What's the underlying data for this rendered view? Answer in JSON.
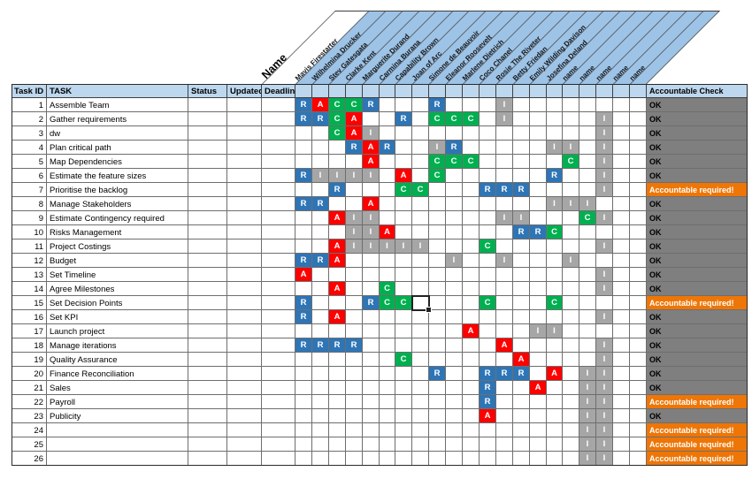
{
  "table": {
    "name_header": "Name",
    "columns": [
      "Task ID",
      "TASK",
      "Status",
      "Updated",
      "Deadline"
    ],
    "accountable_header": "Accountable Check",
    "people": [
      "Mavis Firestarter",
      "Wilhelmina Drucker",
      "Stev Gatesgata",
      "Clarke Kent",
      "Marguerite Durand",
      "Carmina Burana",
      "Capability Brown",
      "Joan of Arc",
      "Simone de Beauvoir",
      "Eleanor Roosevelt",
      "Marlene Dietrich",
      "Coco Chanel",
      "Rosie The Riveter",
      "Betty Friedan",
      "Emily Wilding Davison",
      "Josefina Deland",
      "name",
      "name",
      "name",
      "name",
      "name"
    ],
    "colors": {
      "R": "#2E75B6",
      "A": "#FE0000",
      "C": "#00B050",
      "I": "#A6A6A6",
      "band": "#9DC3E6",
      "header_bg": "#BDD7EE",
      "ok_bg": "#7F7F7F",
      "ok_text": "#000000",
      "required_bg": "#EE7607",
      "required_text": "#FFFFFF"
    },
    "status_ok": "OK",
    "status_required": "Accountable required!",
    "tasks": [
      {
        "id": 1,
        "task": "Assemble Team",
        "raci": {
          "1": "R",
          "2": "A",
          "3": "C",
          "4": "C",
          "5": "R",
          "9": "R",
          "13": "I"
        },
        "check": "OK"
      },
      {
        "id": 2,
        "task": "Gather requirements",
        "raci": {
          "1": "R",
          "2": "R",
          "3": "C",
          "4": "A",
          "7": "R",
          "9": "C",
          "10": "C",
          "11": "C",
          "13": "I",
          "19": "I"
        },
        "check": "OK"
      },
      {
        "id": 3,
        "task": "dw",
        "raci": {
          "3": "C",
          "4": "A",
          "5": "I",
          "19": "I"
        },
        "check": "OK"
      },
      {
        "id": 4,
        "task": "Plan critical path",
        "raci": {
          "4": "R",
          "5": "A",
          "6": "R",
          "9": "I",
          "10": "R",
          "16": "I",
          "17": "I",
          "19": "I"
        },
        "check": "OK"
      },
      {
        "id": 5,
        "task": "Map Dependencies",
        "raci": {
          "5": "A",
          "9": "C",
          "10": "C",
          "11": "C",
          "17": "C",
          "19": "I"
        },
        "check": "OK"
      },
      {
        "id": 6,
        "task": "Estimate the feature sizes",
        "raci": {
          "1": "R",
          "2": "I",
          "3": "I",
          "4": "I",
          "5": "I",
          "7": "A",
          "9": "C",
          "16": "R",
          "19": "I"
        },
        "check": "OK"
      },
      {
        "id": 7,
        "task": "Prioritise the backlog",
        "raci": {
          "3": "R",
          "7": "C",
          "8": "C",
          "12": "R",
          "13": "R",
          "14": "R",
          "19": "I"
        },
        "check": "Accountable required!"
      },
      {
        "id": 8,
        "task": "Manage Stakeholders",
        "raci": {
          "1": "R",
          "2": "R",
          "5": "A",
          "16": "I",
          "17": "I",
          "18": "I"
        },
        "check": "OK"
      },
      {
        "id": 9,
        "task": "Estimate Contingency required",
        "raci": {
          "3": "A",
          "4": "I",
          "5": "I",
          "13": "I",
          "14": "I",
          "18": "C",
          "19": "I"
        },
        "check": "OK"
      },
      {
        "id": 10,
        "task": "Risks Management",
        "raci": {
          "4": "I",
          "5": "I",
          "6": "A",
          "14": "R",
          "15": "R",
          "16": "C"
        },
        "check": "OK"
      },
      {
        "id": 11,
        "task": "Project Costings",
        "raci": {
          "3": "A",
          "4": "I",
          "5": "I",
          "6": "I",
          "7": "I",
          "8": "I",
          "12": "C",
          "19": "I"
        },
        "check": "OK"
      },
      {
        "id": 12,
        "task": "Budget",
        "raci": {
          "1": "R",
          "2": "R",
          "3": "A",
          "10": "I",
          "13": "I",
          "17": "I"
        },
        "check": "OK"
      },
      {
        "id": 13,
        "task": "Set Timeline",
        "raci": {
          "1": "A",
          "19": "I"
        },
        "check": "OK"
      },
      {
        "id": 14,
        "task": "Agree Milestones",
        "raci": {
          "3": "A",
          "6": "C",
          "19": "I"
        },
        "check": "OK"
      },
      {
        "id": 15,
        "task": "Set Decision Points",
        "raci": {
          "1": "R",
          "5": "R",
          "6": "C",
          "7": "C",
          "12": "C",
          "16": "C"
        },
        "check": "Accountable required!"
      },
      {
        "id": 16,
        "task": "Set KPI",
        "raci": {
          "1": "R",
          "3": "A",
          "19": "I"
        },
        "check": "OK"
      },
      {
        "id": 17,
        "task": "Launch project",
        "raci": {
          "11": "A",
          "15": "I",
          "16": "I"
        },
        "check": "OK"
      },
      {
        "id": 18,
        "task": "Manage iterations",
        "raci": {
          "1": "R",
          "2": "R",
          "3": "R",
          "4": "R",
          "13": "A",
          "19": "I"
        },
        "check": "OK"
      },
      {
        "id": 19,
        "task": "Quality Assurance",
        "raci": {
          "7": "C",
          "14": "A",
          "19": "I"
        },
        "check": "OK"
      },
      {
        "id": 20,
        "task": "Finance Reconciliation",
        "raci": {
          "9": "R",
          "12": "R",
          "13": "R",
          "14": "R",
          "16": "A",
          "18": "I",
          "19": "I"
        },
        "check": "OK"
      },
      {
        "id": 21,
        "task": "Sales",
        "raci": {
          "12": "R",
          "15": "A",
          "18": "I",
          "19": "I"
        },
        "check": "OK"
      },
      {
        "id": 22,
        "task": "Payroll",
        "raci": {
          "12": "R",
          "18": "I",
          "19": "I"
        },
        "check": "Accountable required!"
      },
      {
        "id": 23,
        "task": "Publicity",
        "raci": {
          "12": "A",
          "18": "I",
          "19": "I"
        },
        "check": "OK"
      },
      {
        "id": 24,
        "task": "",
        "raci": {
          "18": "I",
          "19": "I"
        },
        "check": "Accountable required!"
      },
      {
        "id": 25,
        "task": "",
        "raci": {
          "18": "I",
          "19": "I"
        },
        "check": "Accountable required!"
      },
      {
        "id": 26,
        "task": "",
        "raci": {
          "18": "I",
          "19": "I"
        },
        "check": "Accountable required!"
      }
    ],
    "selection": {
      "row": 15,
      "col": 8
    }
  }
}
